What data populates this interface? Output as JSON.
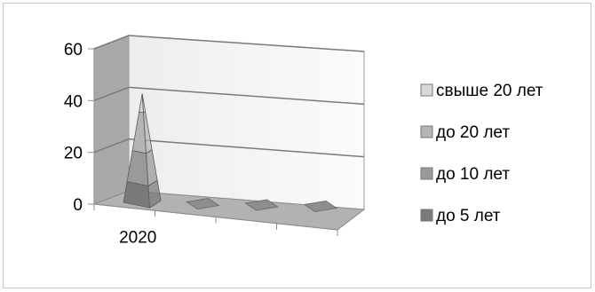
{
  "chart_data": {
    "type": "3d-pyramid-bar",
    "title": "",
    "xlabel": "",
    "ylabel": "",
    "categories": [
      "2020",
      "",
      "",
      ""
    ],
    "y_ticks": [
      "0",
      "20",
      "40",
      "60"
    ],
    "ylim": [
      0,
      60
    ],
    "grid": true,
    "legend_position": "right",
    "series": [
      {
        "name": "до 5 лет",
        "color": "#7a7a7a",
        "values": [
          8,
          0,
          0,
          0
        ]
      },
      {
        "name": "до 10 лет",
        "color": "#9a9a9a",
        "values": [
          12,
          0,
          0,
          0
        ]
      },
      {
        "name": "до 20 лет",
        "color": "#b4b4b4",
        "values": [
          15,
          0,
          0,
          0
        ]
      },
      {
        "name": "свыше 20 лет",
        "color": "#d8d8d8",
        "values": [
          7,
          0,
          0,
          0
        ]
      }
    ],
    "legend_order": [
      "свыше 20 лет",
      "до 20 лет",
      "до 10 лет",
      "до 5 лет"
    ]
  }
}
